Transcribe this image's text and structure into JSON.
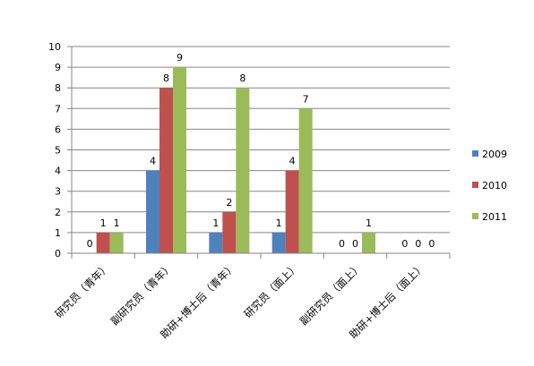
{
  "chart_data": {
    "type": "bar",
    "title": "",
    "xlabel": "",
    "ylabel": "",
    "categories": [
      "研究员（青年）",
      "副研究员（青年）",
      "助研+博士后（青年）",
      "研究员（面上）",
      "副研究员（面上）",
      "助研+博士后（面上）"
    ],
    "series": [
      {
        "name": "2009",
        "values": [
          0,
          4,
          1,
          1,
          0,
          0
        ],
        "color": "#4F81BD"
      },
      {
        "name": "2010",
        "values": [
          1,
          8,
          2,
          4,
          0,
          0
        ],
        "color": "#C0504D"
      },
      {
        "name": "2011",
        "values": [
          1,
          9,
          8,
          7,
          1,
          0
        ],
        "color": "#9BBB59"
      }
    ],
    "ylim": [
      0,
      10
    ],
    "ytick_step": 1,
    "yticks": [
      "0",
      "1",
      "2",
      "3",
      "4",
      "5",
      "6",
      "7",
      "8",
      "9",
      "10"
    ],
    "grid": true,
    "data_labels": true,
    "legend_position": "right",
    "gridline_color": "#868686",
    "axis_color": "#868686"
  }
}
